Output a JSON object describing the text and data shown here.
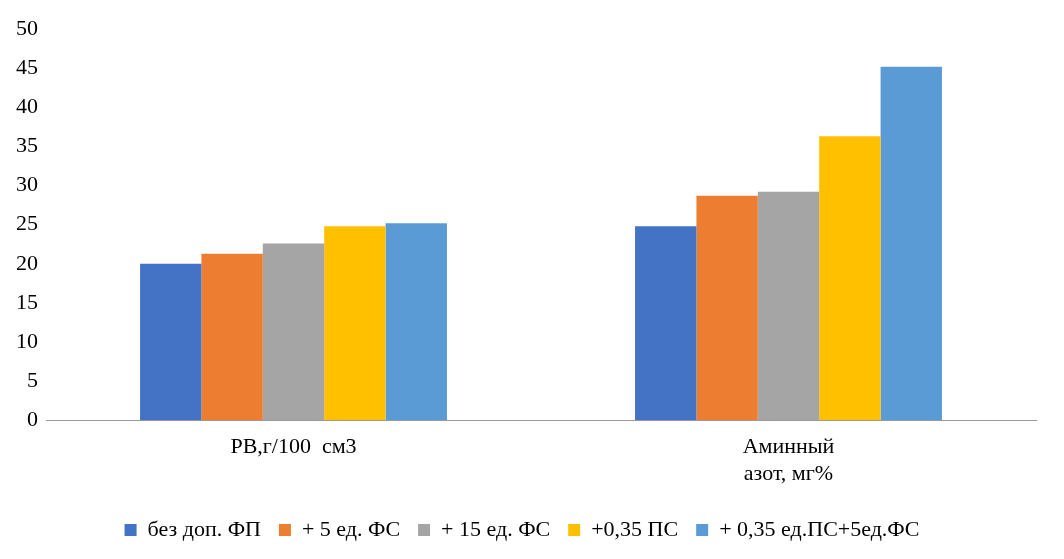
{
  "chart_data": {
    "type": "bar",
    "categories": [
      "РВ,г/100  см3",
      "Аминный\nазот, мг%"
    ],
    "series": [
      {
        "name": "без доп. ФП",
        "color": "#4472c4",
        "values": [
          20.0,
          24.8
        ]
      },
      {
        "name": "+ 5 ед. ФС",
        "color": "#ed7d31",
        "values": [
          21.3,
          28.7
        ]
      },
      {
        "name": "+ 15 ед. ФС",
        "color": "#a5a5a5",
        "values": [
          22.6,
          29.2
        ]
      },
      {
        "name": "+0,35 ПС",
        "color": "#ffc000",
        "values": [
          24.8,
          36.3
        ]
      },
      {
        "name": "+ 0,35 ед.ПС+5ед.ФС",
        "color": "#5b9bd5",
        "values": [
          25.2,
          45.2
        ]
      }
    ],
    "ylim": [
      0,
      50
    ],
    "yticks": [
      0,
      5,
      10,
      15,
      20,
      25,
      30,
      35,
      40,
      45,
      50
    ],
    "grid": false,
    "legend": "bottom"
  }
}
